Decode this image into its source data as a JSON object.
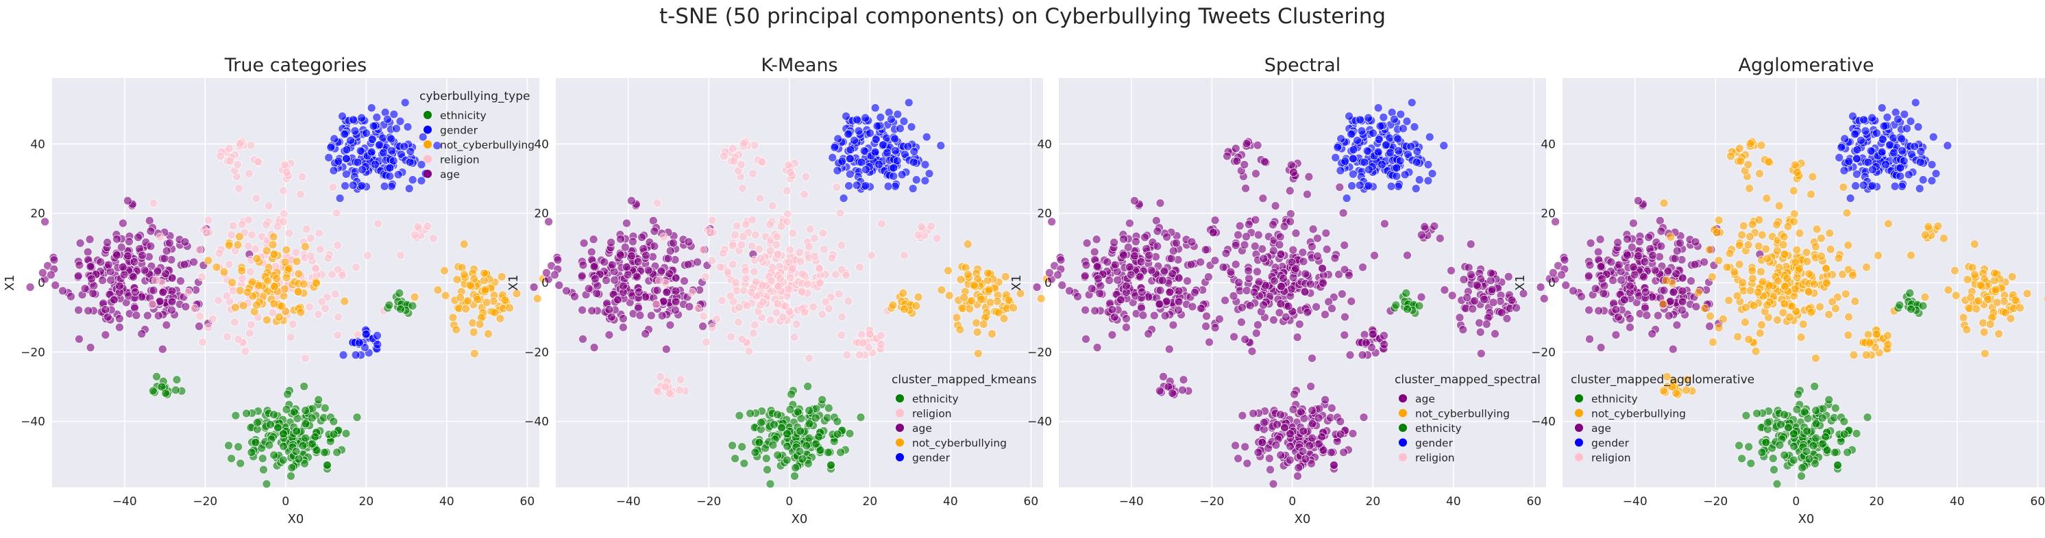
{
  "suptitle": "t-SNE (50 principal components) on Cyberbullying Tweets Clustering",
  "colors": {
    "ethnicity": "#008000",
    "gender": "#0000ff",
    "not_cyberbullying": "#ffa500",
    "religion": "#ffc0cb",
    "age": "#800080",
    "panel_bg": "#eaeaf2",
    "grid": "#ffffff"
  },
  "chart_data": [
    {
      "type": "scatter",
      "title": "True categories",
      "xlabel": "X0",
      "ylabel": "X1",
      "xlim": [
        -58,
        63
      ],
      "ylim": [
        -59,
        59
      ],
      "xticks": [
        -40,
        -20,
        0,
        20,
        40,
        60
      ],
      "yticks": [
        -40,
        -20,
        0,
        20,
        40
      ],
      "legend": {
        "title": "cyberbullying_type",
        "position": "upper right",
        "entries": [
          "ethnicity",
          "gender",
          "not_cyberbullying",
          "religion",
          "age"
        ]
      },
      "mapping": {
        "left": "age",
        "center": "religion",
        "center_mix": "not_cyberbullying",
        "right": "not_cyberbullying",
        "top": "gender",
        "bottom": "ethnicity",
        "small_left": "ethnicity",
        "lower_mid": "gender",
        "small_right": "ethnicity",
        "upper_left": "religion",
        "upper_center": "religion",
        "far_right": "religion"
      }
    },
    {
      "type": "scatter",
      "title": "K-Means",
      "xlabel": "X0",
      "ylabel": "X1",
      "xlim": [
        -58,
        63
      ],
      "ylim": [
        -59,
        59
      ],
      "xticks": [
        -40,
        -20,
        0,
        20,
        40,
        60
      ],
      "yticks": [
        -40,
        -20,
        0,
        20,
        40
      ],
      "legend": {
        "title": "cluster_mapped_kmeans",
        "position": "lower right",
        "entries": [
          "ethnicity",
          "religion",
          "age",
          "not_cyberbullying",
          "gender"
        ]
      },
      "mapping": {
        "left": "age",
        "center": "religion",
        "center_mix": "religion",
        "right": "not_cyberbullying",
        "top": "gender",
        "bottom": "ethnicity",
        "small_left": "religion",
        "lower_mid": "religion",
        "small_right": "not_cyberbullying",
        "upper_left": "religion",
        "upper_center": "religion",
        "far_right": "religion"
      }
    },
    {
      "type": "scatter",
      "title": "Spectral",
      "xlabel": "X0",
      "ylabel": "X1",
      "xlim": [
        -58,
        63
      ],
      "ylim": [
        -59,
        59
      ],
      "xticks": [
        -40,
        -20,
        0,
        20,
        40,
        60
      ],
      "yticks": [
        -40,
        -20,
        0,
        20,
        40
      ],
      "legend": {
        "title": "cluster_mapped_spectral",
        "position": "lower right",
        "entries": [
          "age",
          "not_cyberbullying",
          "ethnicity",
          "gender",
          "religion"
        ]
      },
      "mapping": {
        "left": "age",
        "center": "age",
        "center_mix": "age",
        "right": "age",
        "top": "gender",
        "bottom": "age",
        "small_left": "age",
        "lower_mid": "age",
        "small_right": "ethnicity",
        "upper_left": "age",
        "upper_center": "age",
        "far_right": "age"
      }
    },
    {
      "type": "scatter",
      "title": "Agglomerative",
      "xlabel": "X0",
      "ylabel": "X1",
      "xlim": [
        -58,
        63
      ],
      "ylim": [
        -59,
        59
      ],
      "xticks": [
        -40,
        -20,
        0,
        20,
        40,
        60
      ],
      "yticks": [
        -40,
        -20,
        0,
        20,
        40
      ],
      "legend": {
        "title": "cluster_mapped_agglomerative",
        "position": "lower left",
        "entries": [
          "ethnicity",
          "not_cyberbullying",
          "age",
          "gender",
          "religion"
        ]
      },
      "mapping": {
        "left": "age",
        "center": "not_cyberbullying",
        "center_mix": "not_cyberbullying",
        "right": "not_cyberbullying",
        "top": "gender",
        "bottom": "ethnicity",
        "small_left": "not_cyberbullying",
        "lower_mid": "not_cyberbullying",
        "small_right": "ethnicity",
        "upper_left": "not_cyberbullying",
        "upper_center": "not_cyberbullying",
        "far_right": "not_cyberbullying"
      }
    }
  ]
}
